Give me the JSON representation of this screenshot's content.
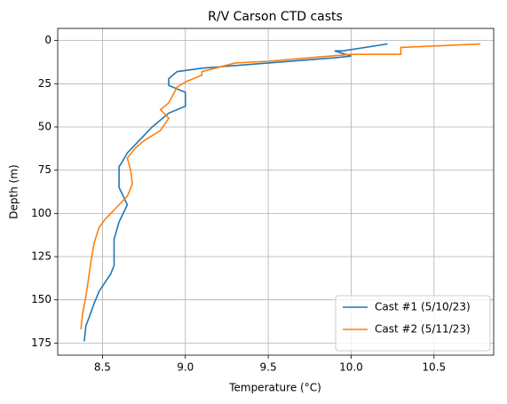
{
  "chart_data": {
    "type": "line",
    "title": "R/V Carson CTD casts",
    "x_label": "Temperature (°C)",
    "y_label": "Depth (m)",
    "xlim": [
      8.23,
      10.86
    ],
    "ylim": [
      182,
      -7
    ],
    "xticks": [
      8.5,
      {
        "value": 9,
        "label": "9.0"
      },
      9.5,
      {
        "value": 10,
        "label": "10.0"
      },
      10.5
    ],
    "yticks": [
      0,
      25,
      50,
      75,
      100,
      125,
      150,
      175
    ],
    "grid": true,
    "legend": "lower right",
    "series": [
      {
        "name": "Cast #1 (5/10/23)",
        "color": "#1f77b4",
        "x": [
          10.22,
          9.95,
          9.9,
          10.0,
          9.9,
          9.5,
          9.1,
          8.95,
          8.9,
          8.9,
          9.0,
          9.0,
          8.9,
          8.8,
          8.75,
          8.7,
          8.65,
          8.62,
          8.6,
          8.6,
          8.65,
          8.6,
          8.57,
          8.57,
          8.55,
          8.48,
          8.45,
          8.42,
          8.4,
          8.39
        ],
        "values": [
          2,
          6,
          6,
          9,
          10,
          13,
          16,
          18,
          22,
          26,
          30,
          38,
          42,
          50,
          55,
          60,
          65,
          70,
          73,
          85,
          95,
          105,
          115,
          130,
          135,
          145,
          152,
          160,
          165,
          174
        ]
      },
      {
        "name": "Cast #2 (5/11/23)",
        "color": "#ff7f0e",
        "x": [
          10.78,
          10.3,
          10.3,
          10.0,
          9.75,
          9.5,
          9.3,
          9.1,
          9.1,
          9.0,
          8.95,
          8.9,
          8.85,
          8.9,
          8.85,
          8.75,
          8.7,
          8.65,
          8.67,
          8.68,
          8.65,
          8.58,
          8.52,
          8.48,
          8.45,
          8.43,
          8.42,
          8.4,
          8.38,
          8.37
        ],
        "values": [
          2,
          4,
          8,
          8,
          10,
          12,
          13,
          18,
          20,
          24,
          27,
          36,
          40,
          45,
          52,
          58,
          62,
          68,
          75,
          83,
          90,
          97,
          103,
          108,
          117,
          128,
          135,
          148,
          158,
          167
        ]
      }
    ]
  }
}
